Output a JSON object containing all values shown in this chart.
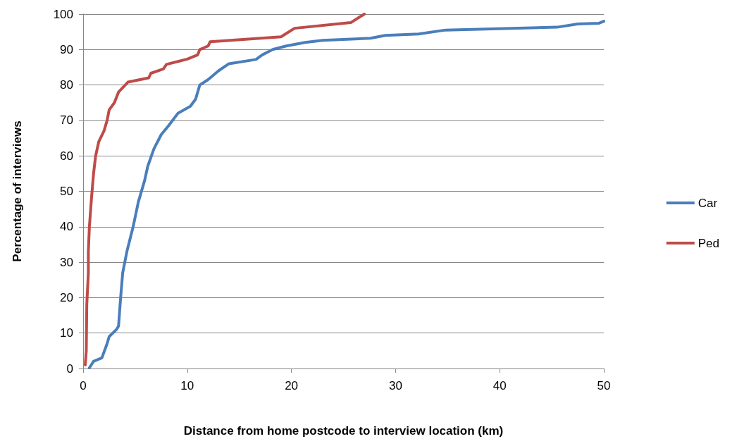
{
  "chart_data": {
    "type": "line",
    "xlabel": "Distance from home postcode to interview location (km)",
    "ylabel": "Percentage of interviews",
    "xlim": [
      0,
      50
    ],
    "xticks": [
      0,
      10,
      20,
      30,
      40,
      50
    ],
    "ylim": [
      0,
      100
    ],
    "yticks": [
      0,
      10,
      20,
      30,
      40,
      50,
      60,
      70,
      80,
      90,
      100
    ],
    "grid": "y",
    "legend": "right",
    "marker": "none",
    "line_style": "solid",
    "series": [
      {
        "name": "Car",
        "color": "#4a7ebb",
        "x": [
          0.6,
          1,
          1.8,
          2.3,
          2.5,
          3.2,
          3.4,
          3.6,
          3.8,
          4.2,
          4.8,
          5.3,
          5.9,
          6.2,
          6.8,
          7.5,
          8.2,
          9.1,
          10.3,
          10.8,
          11.2,
          12,
          13,
          14,
          16.6,
          17.2,
          18.2,
          19.5,
          21.3,
          23,
          27.6,
          29,
          32.2,
          34.8,
          45.5,
          47.5,
          49.5,
          50
        ],
        "values": [
          0.2,
          2,
          3,
          7,
          9,
          11,
          12,
          20,
          27,
          33,
          40,
          47,
          53,
          57,
          62,
          66,
          68.5,
          72,
          74,
          76,
          80,
          81.5,
          84,
          86,
          87.2,
          88.5,
          90,
          91,
          92,
          92.6,
          93.2,
          94,
          94.4,
          95.5,
          96.3,
          97.2,
          97.4,
          98
        ]
      },
      {
        "name": "Ped",
        "color": "#be4b48",
        "x": [
          0.2,
          0.3,
          0.35,
          0.5,
          0.5,
          0.6,
          0.8,
          1,
          1.2,
          1.5,
          2,
          2.3,
          2.5,
          3,
          3.4,
          4.3,
          6.3,
          6.5,
          7.7,
          8,
          10,
          11,
          11.2,
          12,
          12.2,
          19,
          20.3,
          25.7,
          27
        ],
        "values": [
          1,
          5,
          18,
          27,
          33,
          40,
          48,
          55,
          60,
          64,
          67,
          70,
          73,
          75,
          78,
          80.8,
          82,
          83.3,
          84.5,
          85.8,
          87.3,
          88.5,
          90,
          91,
          92.2,
          93.6,
          96,
          97.6,
          100
        ]
      }
    ]
  }
}
